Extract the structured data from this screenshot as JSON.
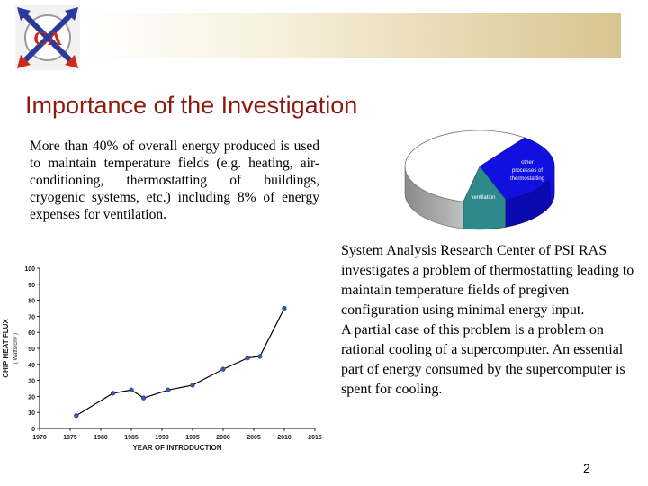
{
  "slide": {
    "logo_text": "CA",
    "title": "Importance of the Investigation",
    "intro_text": "More than 40% of overall energy produced is used to maintain temperature fields (e.g. heating, air-conditioning, thermostatting of buildings, cryogenic systems, etc.) including 8% of energy expenses for ventilation.",
    "right_paragraph_1": "System Analysis Research Center of PSI RAS investigates a problem of thermostatting leading to maintain temperature fields of pregiven configuration using minimal energy input.",
    "right_paragraph_2": "A partial case of this problem is a problem on rational cooling of a supercomputer. An essential part of energy consumed by the supercomputer is spent for cooling.",
    "page_number": "2"
  },
  "pie": {
    "label_other_line1": "other",
    "label_other_line2": "processes of",
    "label_other_line3": "thermostatting",
    "label_ventilation": "ventilation"
  },
  "colors": {
    "title": "#8b1a10",
    "pie_blue": "#1010e0",
    "pie_teal": "#2e8a8a",
    "line": "#000000"
  },
  "chart_data": {
    "type": "line",
    "title": "",
    "xlabel": "YEAR OF INTRODUCTION",
    "ylabel_line1": "CHIP HEAT FLUX",
    "ylabel_line2": "( Watts/cm² )",
    "x": [
      1976,
      1982,
      1985,
      1987,
      1991,
      1995,
      2000,
      2004,
      2006,
      2010
    ],
    "values": [
      8,
      22,
      24,
      19,
      24,
      27,
      37,
      44,
      45,
      75
    ],
    "xlim": [
      1970,
      2015
    ],
    "ylim": [
      0,
      100
    ],
    "xticks": [
      "1970",
      "1975",
      "1980",
      "1985",
      "1990",
      "1995",
      "2000",
      "2005",
      "2010",
      "2015"
    ],
    "yticks": [
      "0",
      "10",
      "20",
      "30",
      "40",
      "50",
      "60",
      "70",
      "80",
      "90",
      "100"
    ],
    "grid": false
  }
}
